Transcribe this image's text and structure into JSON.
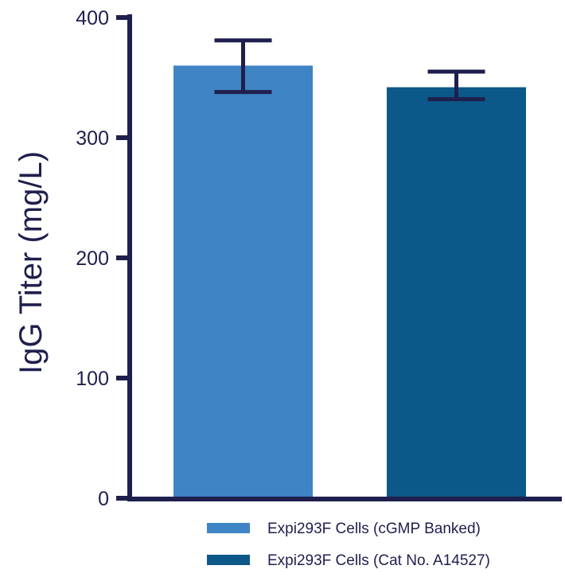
{
  "chart_data": {
    "type": "bar",
    "title": "",
    "xlabel": "",
    "ylabel": "IgG Titer (mg/L)",
    "ylim": [
      0,
      400
    ],
    "yticks": [
      0,
      100,
      200,
      300,
      400
    ],
    "grid": false,
    "legend_position": "bottom-right",
    "series": [
      {
        "name": "Expi293F Cells (cGMP Banked)",
        "value": 360,
        "error_low": 338,
        "error_high": 381,
        "color": "#3f84c4"
      },
      {
        "name": "Expi293F Cells (Cat No. A14527)",
        "value": 342,
        "error_low": 332,
        "error_high": 355,
        "color": "#0c5888"
      }
    ],
    "axis_color": "#1f1f4e"
  }
}
